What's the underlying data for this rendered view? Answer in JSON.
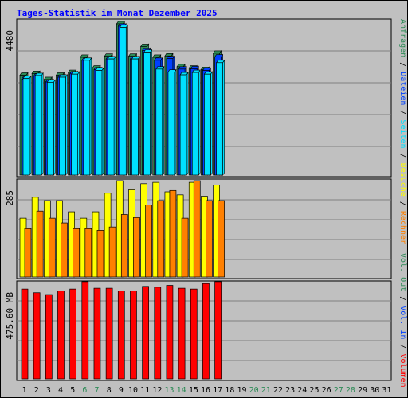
{
  "colors": {
    "background": "#c0c0c0",
    "frame": "#000000",
    "title": "#0000ff",
    "grid": "#808080",
    "weekday_label": "#000000",
    "weekend_label": "#2e8b57",
    "anfragen": "#2e8b57",
    "dateien": "#0040ff",
    "seiten": "#00e0ff",
    "besuche": "#ffff00",
    "rechner": "#ff8000",
    "volumen": "#ff0000",
    "out": "#2e8b57",
    "in": "#0040ff",
    "separator": "#000000"
  },
  "chart_data": {
    "type": "bar",
    "title": "Tages-Statistik im Monat Dezember 2025",
    "days": [
      "1",
      "2",
      "3",
      "4",
      "5",
      "6",
      "7",
      "8",
      "9",
      "10",
      "11",
      "12",
      "13",
      "14",
      "15",
      "16",
      "17",
      "18",
      "19",
      "20",
      "21",
      "22",
      "23",
      "24",
      "25",
      "26",
      "27",
      "28",
      "29",
      "30",
      "31"
    ],
    "weekend_days": [
      "6",
      "7",
      "13",
      "14",
      "20",
      "21",
      "27",
      "28"
    ],
    "panels": [
      {
        "id": "requests",
        "max_label": "4480",
        "ylim": [
          0,
          4480
        ],
        "series": [
          {
            "name": "Anfragen",
            "color_key": "anfragen",
            "offset": 0,
            "values": [
              2960,
              3010,
              2830,
              2960,
              3040,
              3490,
              3170,
              3520,
              4480,
              3520,
              3810,
              3490,
              3530,
              3210,
              3170,
              3130,
              3610
            ]
          },
          {
            "name": "Dateien",
            "color_key": "dateien",
            "offset": 2,
            "values": [
              2840,
              2930,
              2760,
              2900,
              3000,
              3400,
              3120,
              3440,
              4410,
              3440,
              3690,
              3400,
              3450,
              3140,
              3150,
              3100,
              3500
            ]
          },
          {
            "name": "Seiten",
            "color_key": "seiten",
            "offset": 4,
            "values": [
              2860,
              2950,
              2750,
              2900,
              2990,
              3400,
              3100,
              3440,
              4370,
              3440,
              3640,
              3140,
              3050,
              2970,
              3040,
              2990,
              3330
            ]
          }
        ]
      },
      {
        "id": "visits",
        "max_label": "285",
        "ylim": [
          0,
          285
        ],
        "series": [
          {
            "name": "Besuche",
            "color_key": "besuche",
            "offset": 0,
            "values": [
              174,
              236,
              226,
              226,
              193,
              174,
              193,
              248,
              285,
              258,
              276,
              280,
              252,
              243,
              280,
              239,
              272
            ]
          },
          {
            "name": "Rechner",
            "color_key": "rechner",
            "offset": 6,
            "values": [
              143,
              195,
              174,
              160,
              143,
              143,
              138,
              148,
              185,
              176,
              213,
              226,
              256,
              174,
              285,
              226,
              226
            ]
          }
        ]
      },
      {
        "id": "volume",
        "max_label": "475.60 MB",
        "ylim": [
          0,
          475.6
        ],
        "series": [
          {
            "name": "Volumen",
            "color_key": "volumen",
            "offset": 2,
            "values": [
              440,
              422,
              413,
              431,
              440,
              476,
              444,
              444,
              431,
              431,
              453,
              449,
              458,
              444,
              440,
              467,
              476
            ]
          }
        ]
      }
    ],
    "legend_top": [
      {
        "label": "Anfragen",
        "color_key": "anfragen"
      },
      {
        "label": "/",
        "color_key": "separator"
      },
      {
        "label": "Dateien",
        "color_key": "dateien"
      },
      {
        "label": "/",
        "color_key": "separator"
      },
      {
        "label": "Seiten",
        "color_key": "seiten"
      },
      {
        "label": "/",
        "color_key": "separator"
      },
      {
        "label": "Besuche",
        "color_key": "besuche"
      },
      {
        "label": "/",
        "color_key": "separator"
      },
      {
        "label": "Rechner",
        "color_key": "rechner"
      }
    ],
    "legend_bottom": [
      {
        "label": "Vol. Out",
        "color_key": "out"
      },
      {
        "label": "/",
        "color_key": "separator"
      },
      {
        "label": "Vol. In",
        "color_key": "in"
      },
      {
        "label": "/",
        "color_key": "separator"
      },
      {
        "label": "Volumen",
        "color_key": "volumen"
      }
    ]
  }
}
